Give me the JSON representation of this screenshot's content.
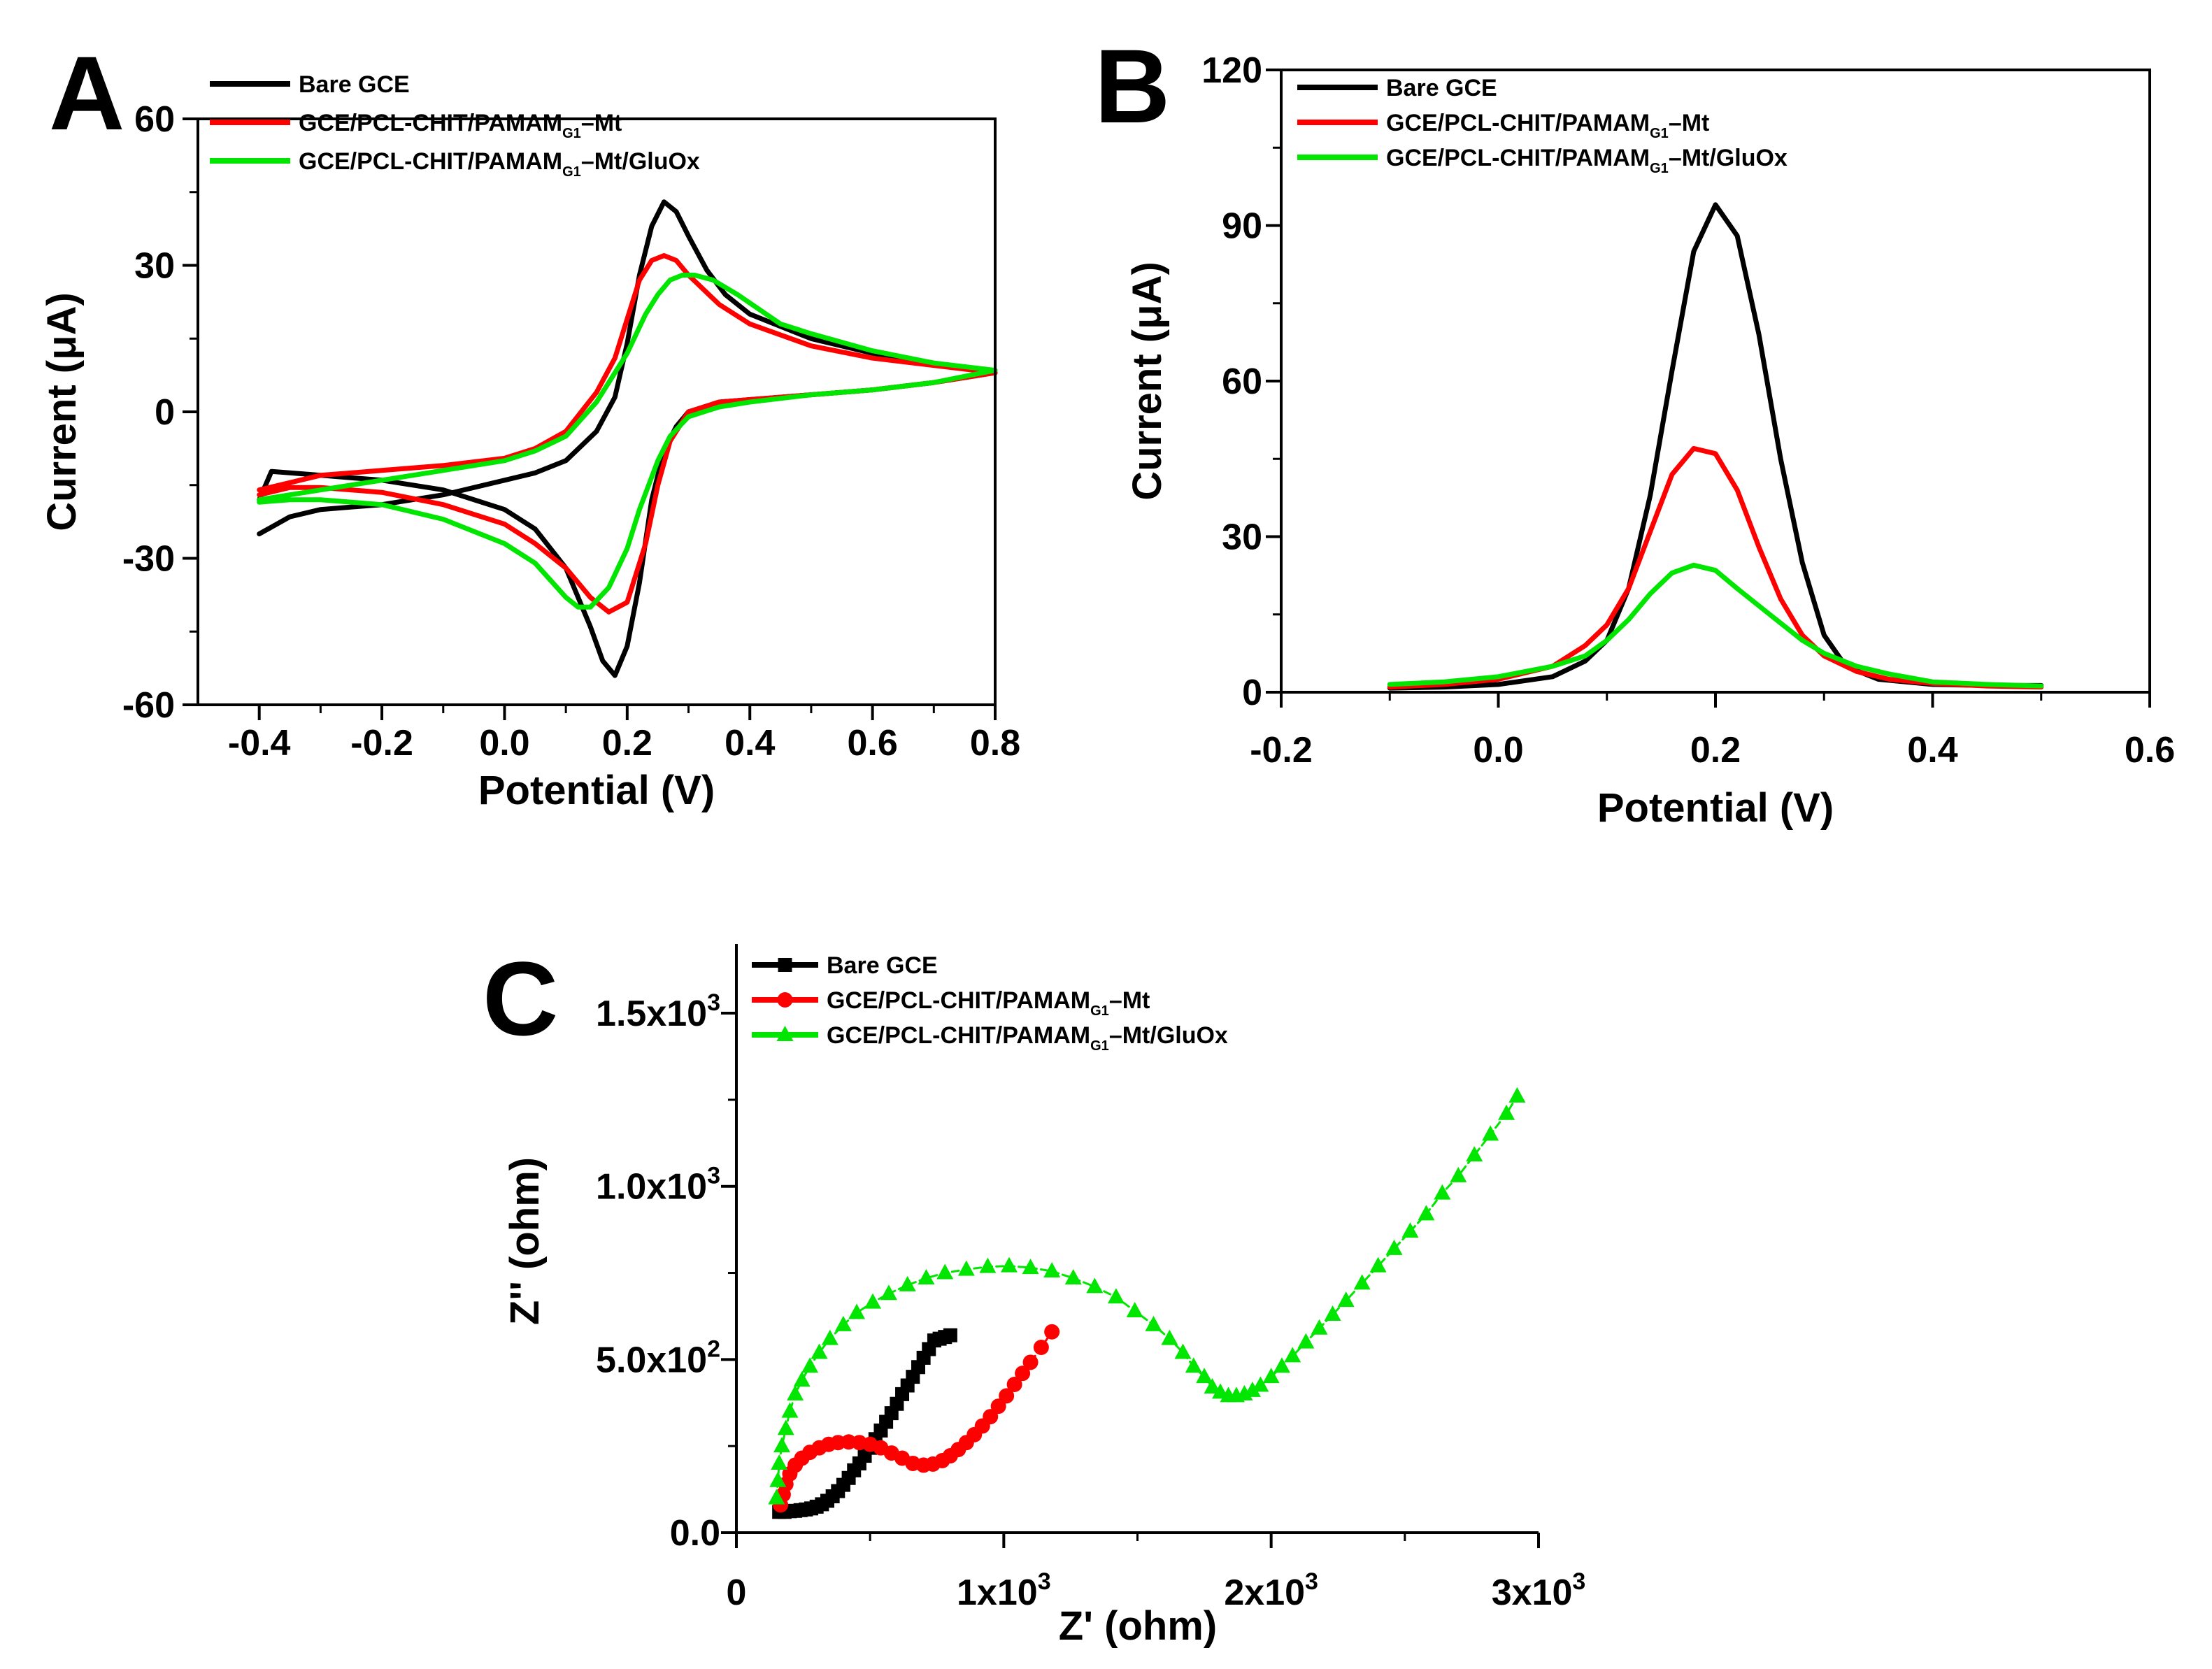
{
  "figure": {
    "panels": [
      "A",
      "B",
      "C"
    ],
    "series_colors": {
      "Bare GCE": "#000000",
      "GCE/PCL-CHIT/PAMAM_G1-Mt": "#ff0000",
      "GCE/PCL-CHIT/PAMAM_G1-Mt/GluOx": "#00e600"
    }
  },
  "chart_data": [
    {
      "panel": "A",
      "type": "line",
      "subtype": "cyclic voltammogram",
      "xlabel": "Potential (V)",
      "ylabel": "Current (μA)",
      "xlim": [
        -0.5,
        0.8
      ],
      "ylim": [
        -60,
        60
      ],
      "xticks": [
        -0.4,
        -0.2,
        0.0,
        0.2,
        0.4,
        0.6,
        0.8
      ],
      "xtick_labels": [
        "-0.4",
        "-0.2",
        "0.0",
        "0.2",
        "0.4",
        "0.6",
        "0.8"
      ],
      "yticks": [
        -60,
        -30,
        0,
        30,
        60
      ],
      "ytick_labels": [
        "-60",
        "-30",
        "0",
        "30",
        "60"
      ],
      "legend": {
        "position": "top-left",
        "entries": [
          {
            "name": "Bare GCE",
            "color": "#000000",
            "marker": "none"
          },
          {
            "name": "GCE/PCL-CHIT/PAMAM",
            "sub": "G1",
            "suffix": "–Mt",
            "color": "#ff0000",
            "marker": "none"
          },
          {
            "name": "GCE/PCL-CHIT/PAMAM",
            "sub": "G1",
            "suffix": "–Mt/GluOx",
            "color": "#00e600",
            "marker": "none"
          }
        ]
      },
      "series": [
        {
          "name": "Bare GCE",
          "color": "#000000",
          "x": [
            -0.4,
            -0.35,
            -0.3,
            -0.2,
            -0.1,
            0.0,
            0.05,
            0.1,
            0.15,
            0.18,
            0.2,
            0.22,
            0.24,
            0.26,
            0.28,
            0.3,
            0.33,
            0.36,
            0.4,
            0.5,
            0.6,
            0.7,
            0.8,
            0.7,
            0.6,
            0.5,
            0.4,
            0.35,
            0.3,
            0.28,
            0.26,
            0.24,
            0.22,
            0.2,
            0.18,
            0.16,
            0.14,
            0.1,
            0.05,
            0.0,
            -0.1,
            -0.2,
            -0.3,
            -0.35,
            -0.38,
            -0.4
          ],
          "y": [
            -25,
            -21.5,
            -20,
            -19,
            -17,
            -14,
            -12.5,
            -10,
            -4,
            3,
            14,
            28,
            38,
            43,
            41,
            36,
            29,
            24,
            20,
            15,
            12,
            10,
            8,
            6,
            4.5,
            3.5,
            2.5,
            2,
            0,
            -3,
            -8,
            -18,
            -35,
            -48,
            -54,
            -51,
            -44,
            -32,
            -24,
            -20,
            -16,
            -14,
            -13,
            -12.5,
            -12.2,
            -18
          ]
        },
        {
          "name": "GCE/PCL-CHIT/PAMAM_G1-Mt",
          "color": "#ff0000",
          "x": [
            -0.4,
            -0.35,
            -0.3,
            -0.2,
            -0.1,
            0.0,
            0.05,
            0.1,
            0.15,
            0.18,
            0.2,
            0.22,
            0.24,
            0.26,
            0.28,
            0.3,
            0.35,
            0.4,
            0.5,
            0.6,
            0.7,
            0.8,
            0.7,
            0.6,
            0.5,
            0.4,
            0.35,
            0.3,
            0.27,
            0.25,
            0.23,
            0.2,
            0.17,
            0.14,
            0.12,
            0.1,
            0.05,
            0.0,
            -0.1,
            -0.2,
            -0.3,
            -0.35,
            -0.4
          ],
          "y": [
            -16,
            -14.5,
            -13,
            -12,
            -11,
            -9.5,
            -7.5,
            -4,
            4,
            11,
            19,
            27,
            31,
            32,
            31,
            28,
            22,
            18,
            13.5,
            11,
            9.5,
            8,
            6,
            4.5,
            3.5,
            2.5,
            2,
            0,
            -6,
            -15,
            -27,
            -39,
            -41,
            -38,
            -35,
            -32,
            -27,
            -23,
            -19,
            -16.5,
            -15.5,
            -15.5,
            -17
          ]
        },
        {
          "name": "GCE/PCL-CHIT/PAMAM_G1-Mt/GluOx",
          "color": "#00e600",
          "x": [
            -0.4,
            -0.35,
            -0.3,
            -0.2,
            -0.1,
            0.0,
            0.05,
            0.1,
            0.15,
            0.2,
            0.23,
            0.25,
            0.27,
            0.29,
            0.31,
            0.34,
            0.38,
            0.45,
            0.5,
            0.6,
            0.7,
            0.8,
            0.7,
            0.6,
            0.5,
            0.4,
            0.35,
            0.3,
            0.27,
            0.25,
            0.22,
            0.2,
            0.17,
            0.14,
            0.12,
            0.1,
            0.05,
            0.0,
            -0.1,
            -0.2,
            -0.3,
            -0.35,
            -0.4
          ],
          "y": [
            -18,
            -17,
            -16,
            -14,
            -12,
            -10,
            -8,
            -5,
            2,
            12,
            20,
            24,
            27,
            28,
            28,
            27,
            24,
            18,
            16,
            12.5,
            10,
            8.5,
            6,
            4.5,
            3.5,
            2,
            1,
            -1,
            -5,
            -10,
            -20,
            -28,
            -36,
            -40,
            -40,
            -38,
            -31,
            -27,
            -22,
            -19,
            -18,
            -18,
            -18.5
          ]
        }
      ]
    },
    {
      "panel": "B",
      "type": "line",
      "subtype": "differential pulse voltammogram",
      "xlabel": "Potential (V)",
      "ylabel": "Current (μA)",
      "xlim": [
        -0.2,
        0.6
      ],
      "ylim": [
        0,
        120
      ],
      "xticks": [
        -0.2,
        0.0,
        0.2,
        0.4,
        0.6
      ],
      "xtick_labels": [
        "-0.2",
        "0.0",
        "0.2",
        "0.4",
        "0.6"
      ],
      "yticks": [
        0,
        30,
        60,
        90,
        120
      ],
      "ytick_labels": [
        "0",
        "30",
        "60",
        "90",
        "120"
      ],
      "legend": {
        "position": "top-left",
        "entries": [
          {
            "name": "Bare GCE",
            "color": "#000000",
            "marker": "none"
          },
          {
            "name": "GCE/PCL-CHIT/PAMAM",
            "sub": "G1",
            "suffix": "–Mt",
            "color": "#ff0000",
            "marker": "none"
          },
          {
            "name": "GCE/PCL-CHIT/PAMAM",
            "sub": "G1",
            "suffix": "–Mt/GluOx",
            "color": "#00e600",
            "marker": "none"
          }
        ]
      },
      "series": [
        {
          "name": "Bare GCE",
          "color": "#000000",
          "x": [
            -0.1,
            -0.05,
            0.0,
            0.05,
            0.08,
            0.1,
            0.12,
            0.14,
            0.16,
            0.18,
            0.2,
            0.22,
            0.24,
            0.26,
            0.28,
            0.3,
            0.32,
            0.35,
            0.4,
            0.45,
            0.5
          ],
          "y": [
            0.8,
            1,
            1.5,
            3,
            6,
            10,
            20,
            38,
            62,
            85,
            94,
            88,
            69,
            45,
            25,
            11,
            5,
            2.5,
            1.5,
            1.3,
            1.3
          ]
        },
        {
          "name": "GCE/PCL-CHIT/PAMAM_G1-Mt",
          "color": "#ff0000",
          "x": [
            -0.1,
            -0.05,
            0.0,
            0.05,
            0.08,
            0.1,
            0.12,
            0.14,
            0.16,
            0.18,
            0.2,
            0.22,
            0.24,
            0.26,
            0.28,
            0.3,
            0.33,
            0.36,
            0.4,
            0.45,
            0.5
          ],
          "y": [
            1,
            1.5,
            2.5,
            5,
            9,
            13,
            20,
            31,
            42,
            47,
            46,
            39,
            28,
            18,
            11,
            7,
            4,
            2.5,
            1.7,
            1.2,
            1
          ]
        },
        {
          "name": "GCE/PCL-CHIT/PAMAM_G1-Mt/GluOx",
          "color": "#00e600",
          "x": [
            -0.1,
            -0.05,
            0.0,
            0.05,
            0.08,
            0.1,
            0.12,
            0.14,
            0.16,
            0.18,
            0.2,
            0.22,
            0.25,
            0.28,
            0.3,
            0.33,
            0.36,
            0.4,
            0.45,
            0.5
          ],
          "y": [
            1.5,
            2,
            3,
            5,
            7,
            10,
            14,
            19,
            23,
            24.5,
            23.5,
            20,
            15,
            10,
            7.5,
            5,
            3.5,
            2,
            1.5,
            1.2
          ]
        }
      ]
    },
    {
      "panel": "C",
      "type": "scatter",
      "subtype": "Nyquist plot (EIS)",
      "xlabel": "Z' (ohm)",
      "ylabel": "Z'' (ohm)",
      "xlim": [
        0,
        3000
      ],
      "ylim": [
        0,
        1700
      ],
      "xticks": [
        0,
        1000,
        2000,
        3000
      ],
      "xtick_labels": [
        "0",
        "1x10^3",
        "2x10^3",
        "3x10^3"
      ],
      "yticks": [
        0,
        500,
        1000,
        1500
      ],
      "ytick_labels": [
        "0.0",
        "5.0x10^2",
        "1.0x10^3",
        "1.5x10^3"
      ],
      "legend": {
        "position": "top-left",
        "entries": [
          {
            "name": "Bare GCE",
            "color": "#000000",
            "marker": "square"
          },
          {
            "name": "GCE/PCL-CHIT/PAMAM",
            "sub": "G1",
            "suffix": "–Mt",
            "color": "#ff0000",
            "marker": "circle"
          },
          {
            "name": "GCE/PCL-CHIT/PAMAM",
            "sub": "G1",
            "suffix": "–Mt/GluOx",
            "color": "#00e600",
            "marker": "triangle"
          }
        ]
      },
      "series": [
        {
          "name": "Bare GCE",
          "color": "#000000",
          "marker": "square",
          "x": [
            160,
            180,
            200,
            220,
            240,
            260,
            280,
            300,
            320,
            340,
            360,
            380,
            400,
            420,
            440,
            460,
            480,
            500,
            520,
            540,
            560,
            580,
            600,
            620,
            640,
            660,
            680,
            700,
            720,
            740,
            760,
            780,
            800
          ],
          "y": [
            60,
            60,
            62,
            63,
            65,
            67,
            70,
            75,
            82,
            92,
            105,
            120,
            138,
            158,
            180,
            200,
            222,
            245,
            270,
            295,
            320,
            345,
            372,
            400,
            425,
            450,
            478,
            505,
            530,
            555,
            560,
            565,
            570
          ]
        },
        {
          "name": "GCE/PCL-CHIT/PAMAM_G1-Mt",
          "color": "#ff0000",
          "marker": "circle",
          "x": [
            165,
            175,
            185,
            200,
            220,
            245,
            275,
            310,
            345,
            380,
            420,
            460,
            500,
            540,
            580,
            620,
            660,
            700,
            735,
            770,
            800,
            830,
            860,
            890,
            920,
            950,
            980,
            1010,
            1040,
            1070,
            1100,
            1140,
            1180
          ],
          "y": [
            80,
            110,
            140,
            170,
            195,
            215,
            232,
            245,
            255,
            260,
            262,
            260,
            255,
            245,
            230,
            215,
            200,
            195,
            198,
            208,
            222,
            240,
            260,
            283,
            308,
            335,
            365,
            395,
            428,
            460,
            492,
            535,
            580
          ]
        },
        {
          "name": "GCE/PCL-CHIT/PAMAM_G1-Mt/GluOx",
          "color": "#00e600",
          "marker": "triangle",
          "x": [
            150,
            155,
            160,
            170,
            185,
            200,
            220,
            245,
            275,
            310,
            350,
            400,
            450,
            510,
            570,
            640,
            710,
            780,
            860,
            940,
            1020,
            1100,
            1180,
            1260,
            1340,
            1420,
            1490,
            1560,
            1620,
            1670,
            1710,
            1750,
            1780,
            1810,
            1840,
            1870,
            1900,
            1930,
            1960,
            2000,
            2040,
            2080,
            2130,
            2180,
            2230,
            2280,
            2340,
            2400,
            2460,
            2520,
            2580,
            2640,
            2700,
            2760,
            2820,
            2880,
            2920
          ],
          "y": [
            100,
            150,
            200,
            250,
            300,
            350,
            400,
            440,
            480,
            520,
            560,
            600,
            635,
            665,
            690,
            715,
            735,
            750,
            760,
            768,
            770,
            765,
            755,
            735,
            710,
            680,
            640,
            600,
            560,
            520,
            480,
            450,
            420,
            405,
            395,
            395,
            400,
            410,
            425,
            450,
            480,
            510,
            550,
            590,
            630,
            670,
            720,
            770,
            820,
            870,
            920,
            980,
            1030,
            1090,
            1150,
            1210,
            1260
          ]
        }
      ]
    }
  ]
}
